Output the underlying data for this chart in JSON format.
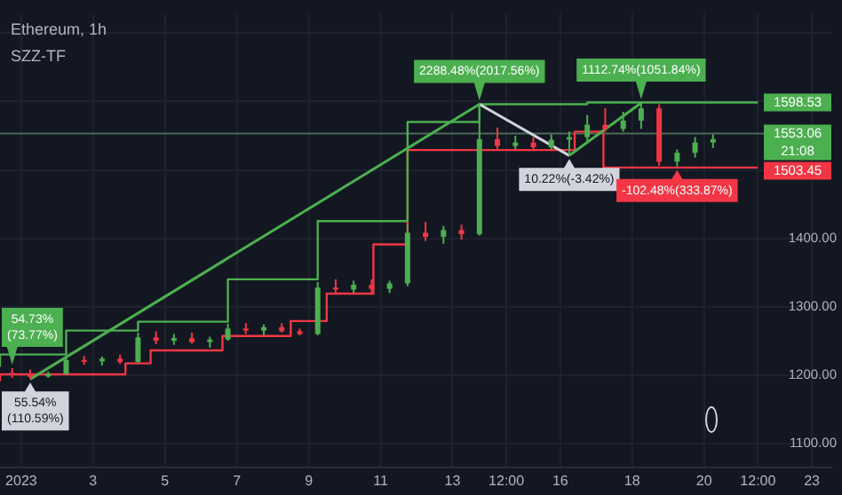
{
  "chart_data": {
    "type": "candlestick",
    "title": "Ethereum, 1h",
    "subtitle": "SZZ-TF",
    "x": [
      "2022-12-31T18:00",
      "2023-01-01T06:00",
      "2023-01-01T18:00",
      "2023-01-02T06:00",
      "2023-01-02T18:00",
      "2023-01-03T06:00",
      "2023-01-03T18:00",
      "2023-01-04T06:00",
      "2023-01-04T18:00",
      "2023-01-05T06:00",
      "2023-01-05T18:00",
      "2023-01-06T06:00",
      "2023-01-06T18:00",
      "2023-01-07T06:00",
      "2023-01-07T18:00",
      "2023-01-08T06:00",
      "2023-01-08T18:00",
      "2023-01-09T06:00",
      "2023-01-09T18:00",
      "2023-01-10T06:00",
      "2023-01-10T18:00",
      "2023-01-11T06:00",
      "2023-01-11T18:00",
      "2023-01-12T06:00",
      "2023-01-12T18:00",
      "2023-01-13T06:00",
      "2023-01-13T18:00",
      "2023-01-14T06:00",
      "2023-01-14T18:00",
      "2023-01-15T06:00",
      "2023-01-15T18:00",
      "2023-01-16T06:00",
      "2023-01-16T18:00",
      "2023-01-17T06:00",
      "2023-01-17T18:00",
      "2023-01-18T06:00",
      "2023-01-18T18:00",
      "2023-01-19T06:00",
      "2023-01-19T18:00",
      "2023-01-20T06:00"
    ],
    "ohlc": [
      [
        1203,
        1210,
        1196,
        1200
      ],
      [
        1200,
        1208,
        1194,
        1198
      ],
      [
        1198,
        1205,
        1196,
        1202
      ],
      [
        1202,
        1226,
        1200,
        1222
      ],
      [
        1222,
        1228,
        1215,
        1220
      ],
      [
        1220,
        1227,
        1214,
        1224
      ],
      [
        1224,
        1230,
        1216,
        1219
      ],
      [
        1219,
        1262,
        1218,
        1255
      ],
      [
        1255,
        1264,
        1245,
        1250
      ],
      [
        1250,
        1260,
        1244,
        1254
      ],
      [
        1254,
        1262,
        1246,
        1248
      ],
      [
        1248,
        1256,
        1240,
        1252
      ],
      [
        1252,
        1275,
        1250,
        1268
      ],
      [
        1268,
        1276,
        1260,
        1265
      ],
      [
        1265,
        1274,
        1258,
        1270
      ],
      [
        1270,
        1276,
        1262,
        1264
      ],
      [
        1264,
        1268,
        1258,
        1260
      ],
      [
        1260,
        1336,
        1258,
        1328
      ],
      [
        1328,
        1340,
        1320,
        1325
      ],
      [
        1325,
        1338,
        1320,
        1332
      ],
      [
        1332,
        1340,
        1320,
        1326
      ],
      [
        1326,
        1338,
        1320,
        1334
      ],
      [
        1334,
        1420,
        1330,
        1408
      ],
      [
        1408,
        1424,
        1396,
        1402
      ],
      [
        1402,
        1418,
        1392,
        1412
      ],
      [
        1412,
        1420,
        1398,
        1406
      ],
      [
        1406,
        1596,
        1404,
        1545
      ],
      [
        1545,
        1562,
        1530,
        1535
      ],
      [
        1535,
        1550,
        1530,
        1540
      ],
      [
        1540,
        1548,
        1530,
        1533
      ],
      [
        1533,
        1552,
        1530,
        1544
      ],
      [
        1544,
        1556,
        1521,
        1548
      ],
      [
        1548,
        1580,
        1540,
        1566
      ],
      [
        1566,
        1590,
        1556,
        1560
      ],
      [
        1560,
        1585,
        1556,
        1572
      ],
      [
        1572,
        1598,
        1560,
        1590
      ],
      [
        1590,
        1596,
        1506,
        1512
      ],
      [
        1512,
        1530,
        1505,
        1525
      ],
      [
        1525,
        1548,
        1518,
        1540
      ],
      [
        1540,
        1552,
        1532,
        1545
      ]
    ],
    "series": [
      {
        "type": "line",
        "color": "#4caf50",
        "x": [
          "2023-01-01T06:00",
          "2023-01-13T18:00"
        ],
        "values": [
          1194,
          1596
        ]
      },
      {
        "type": "line",
        "color": "#d1d4dc",
        "x": [
          "2023-01-13T18:00",
          "2023-01-16T06:00"
        ],
        "values": [
          1596,
          1521
        ]
      },
      {
        "type": "line",
        "color": "#4caf50",
        "x": [
          "2023-01-16T06:00",
          "2023-01-18T06:00"
        ],
        "values": [
          1521,
          1598
        ]
      },
      {
        "type": "step",
        "color": "#4caf50",
        "x": [
          "2022-12-31T09:50",
          "2023-01-02T06:00",
          "2023-01-04T06:00",
          "2023-01-06T18:00",
          "2023-01-09T06:00",
          "2023-01-11T18:00",
          "2023-01-13T18:00",
          "2023-01-16T18:00",
          "2023-01-18T06:00",
          "2023-01-21T12:00"
        ],
        "values": [
          1212,
          1230,
          1265,
          1278,
          1340,
          1425,
          1570,
          1596,
          1598.53,
          1598.53
        ],
        "value_labels": [
          null,
          null,
          null,
          null,
          null,
          null,
          null,
          null,
          null,
          "1598.53"
        ]
      },
      {
        "type": "step",
        "color": "#f23645",
        "x": [
          "2022-12-31T09:50",
          "2023-01-03T21:36",
          "2023-01-04T14:24",
          "2023-01-06T14:24",
          "2023-01-08T12:00",
          "2023-01-09T12:00",
          "2023-01-10T19:12",
          "2023-01-11T18:00",
          "2023-01-16T09:36",
          "2023-01-17T04:48",
          "2023-01-18T18:00",
          "2023-01-21T12:00"
        ],
        "values": [
          1191,
          1201,
          1217,
          1236,
          1257,
          1279,
          1319,
          1391,
          1529,
          1556,
          1503.45,
          1503.45
        ],
        "value_labels": [
          null,
          null,
          null,
          null,
          null,
          null,
          null,
          null,
          null,
          null,
          null,
          "1503.45"
        ]
      }
    ],
    "xlim": [
      "2022-12-31T09:50",
      "2023-01-23T13:00"
    ],
    "xticks": [
      {
        "value": "2023-01-01",
        "label": "2023"
      },
      {
        "value": "2023-01-03",
        "label": "3"
      },
      {
        "value": "2023-01-05",
        "label": "5"
      },
      {
        "value": "2023-01-07",
        "label": "7"
      },
      {
        "value": "2023-01-09",
        "label": "9"
      },
      {
        "value": "2023-01-11",
        "label": "11"
      },
      {
        "value": "2023-01-13",
        "label": "13"
      },
      {
        "value": "2023-01-14T12:00",
        "label": "12:00"
      },
      {
        "value": "2023-01-16",
        "label": "16"
      },
      {
        "value": "2023-01-18",
        "label": "18"
      },
      {
        "value": "2023-01-20",
        "label": "20"
      },
      {
        "value": "2023-01-21T12:00",
        "label": "12:00"
      },
      {
        "value": "2023-01-23",
        "label": "23"
      }
    ],
    "ylim": [
      1065,
      1729
    ],
    "yticks": [
      {
        "value": 1100,
        "label": "1100.00"
      },
      {
        "value": 1200,
        "label": "1200.00"
      },
      {
        "value": 1300,
        "label": "1300.00"
      },
      {
        "value": 1400,
        "label": "1400.00"
      },
      {
        "value": 1500,
        "label": null
      },
      {
        "value": 1600,
        "label": null
      },
      {
        "value": 1700,
        "label": null
      }
    ],
    "grid": true,
    "ref_lines": [
      {
        "axis": "y",
        "value": 1553.06,
        "label": "1553.06",
        "color": "#4a6b55"
      }
    ],
    "annotations": [
      {
        "text": "54.73%(73.77%)",
        "x": "2022-12-31T18:00",
        "y": 1210
      },
      {
        "text": "55.54%(110.59%)",
        "x": "2023-01-01T06:00",
        "y": 1194
      },
      {
        "text": "2288.48%(2017.56%)",
        "x": "2023-01-13T18:00",
        "y": 1596
      },
      {
        "text": "10.22%(-3.42%)",
        "x": "2023-01-16T06:00",
        "y": 1521
      },
      {
        "text": "1112.74%(1051.84%)",
        "x": "2023-01-18T06:00",
        "y": 1598
      },
      {
        "text": "-102.48%(333.87%)",
        "x": "2023-01-19T06:00",
        "y": 1505
      },
      "21:08"
    ]
  }
}
